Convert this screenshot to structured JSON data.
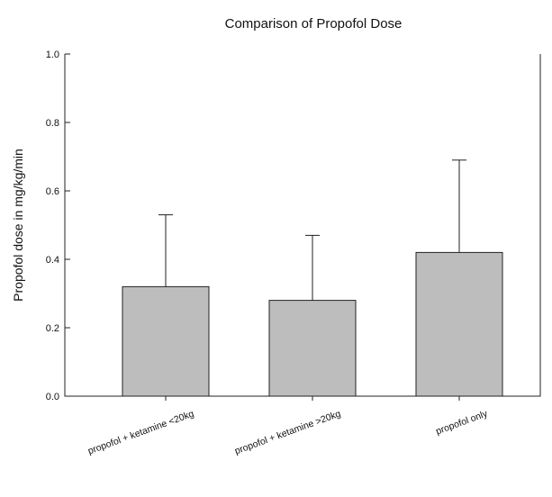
{
  "chart_data": {
    "type": "bar",
    "title": "Comparison of Propofol Dose",
    "xlabel": "",
    "ylabel": "Propofol dose in mg/kg/min",
    "categories": [
      "propofol + ketamine <20kg",
      "propofol + ketamine >20kg",
      "propofol only"
    ],
    "values": [
      0.32,
      0.28,
      0.42
    ],
    "error_upper": [
      0.53,
      0.47,
      0.69
    ],
    "ylim": [
      0.0,
      1.0
    ],
    "yticks": [
      0.0,
      0.2,
      0.4,
      0.6,
      0.8,
      1.0
    ],
    "ytick_labels": [
      "0.0",
      "0.2",
      "0.4",
      "0.6",
      "0.8",
      "1.0"
    ],
    "grid": false,
    "bar_color": "#bdbdbd",
    "axis_color": "#222222"
  }
}
